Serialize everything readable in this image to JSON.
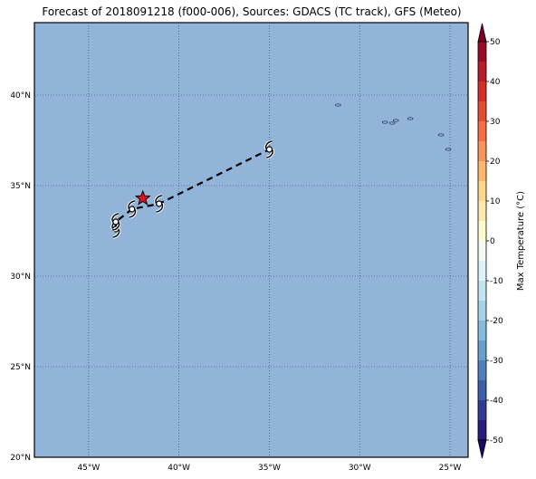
{
  "title": "Forecast of 2018091218 (f000-006), Sources: GDACS (TC track), GFS (Meteo)",
  "map": {
    "lon_range": [
      -48,
      -24
    ],
    "lat_range": [
      20,
      44
    ],
    "background_color": "#92b4d9",
    "grid": true,
    "lat_ticks": [
      {
        "value": 20,
        "label": "20°N"
      },
      {
        "value": 25,
        "label": "25°N"
      },
      {
        "value": 30,
        "label": "30°N"
      },
      {
        "value": 35,
        "label": "35°N"
      },
      {
        "value": 40,
        "label": "40°N"
      }
    ],
    "lon_ticks": [
      {
        "value": -45,
        "label": "45°W"
      },
      {
        "value": -40,
        "label": "40°W"
      },
      {
        "value": -35,
        "label": "35°W"
      },
      {
        "value": -30,
        "label": "30°W"
      },
      {
        "value": -25,
        "label": "25°W"
      }
    ]
  },
  "track": {
    "points": [
      {
        "lon": -43.5,
        "lat": 32.6
      },
      {
        "lon": -43.5,
        "lat": 33.0
      },
      {
        "lon": -42.6,
        "lat": 33.7
      },
      {
        "lon": -41.1,
        "lat": 34.0
      },
      {
        "lon": -35.0,
        "lat": 37.0
      }
    ],
    "current_position": {
      "lon": -42.0,
      "lat": 34.3
    },
    "star_color": "#e8101e"
  },
  "islands": [
    {
      "lon": -31.2,
      "lat": 39.45
    },
    {
      "lon": -28.6,
      "lat": 38.5
    },
    {
      "lon": -28.0,
      "lat": 38.6
    },
    {
      "lon": -28.2,
      "lat": 38.45
    },
    {
      "lon": -27.2,
      "lat": 38.7
    },
    {
      "lon": -25.5,
      "lat": 37.8
    },
    {
      "lon": -25.1,
      "lat": 37.0
    }
  ],
  "colorbar": {
    "label": "Max Temperature (°C)",
    "ticks": [
      50,
      40,
      30,
      20,
      10,
      0,
      -10,
      -20,
      -30,
      -40,
      -50
    ],
    "range": [
      -55,
      55
    ],
    "bands": [
      {
        "from": 50,
        "to": 55,
        "color": "#7f0126"
      },
      {
        "from": 45,
        "to": 50,
        "color": "#9a0a27"
      },
      {
        "from": 40,
        "to": 45,
        "color": "#b81b2a"
      },
      {
        "from": 35,
        "to": 40,
        "color": "#d32f27"
      },
      {
        "from": 30,
        "to": 35,
        "color": "#e64c31"
      },
      {
        "from": 25,
        "to": 30,
        "color": "#f46d43"
      },
      {
        "from": 20,
        "to": 25,
        "color": "#f99459"
      },
      {
        "from": 15,
        "to": 20,
        "color": "#fdb86e"
      },
      {
        "from": 10,
        "to": 15,
        "color": "#fed68c"
      },
      {
        "from": 5,
        "to": 10,
        "color": "#fee9ab"
      },
      {
        "from": 0,
        "to": 5,
        "color": "#fff9ce"
      },
      {
        "from": -5,
        "to": 0,
        "color": "#f3fbf1"
      },
      {
        "from": -10,
        "to": -5,
        "color": "#def2f7"
      },
      {
        "from": -15,
        "to": -10,
        "color": "#c2e4ef"
      },
      {
        "from": -20,
        "to": -15,
        "color": "#a3d3e6"
      },
      {
        "from": -25,
        "to": -20,
        "color": "#84bcdb"
      },
      {
        "from": -30,
        "to": -25,
        "color": "#679fcd"
      },
      {
        "from": -35,
        "to": -30,
        "color": "#4f80bc"
      },
      {
        "from": -40,
        "to": -35,
        "color": "#3d5ea9"
      },
      {
        "from": -45,
        "to": -40,
        "color": "#313c94"
      },
      {
        "from": -50,
        "to": -45,
        "color": "#2a1e7b"
      },
      {
        "from": -55,
        "to": -50,
        "color": "#1c0b62"
      }
    ]
  }
}
